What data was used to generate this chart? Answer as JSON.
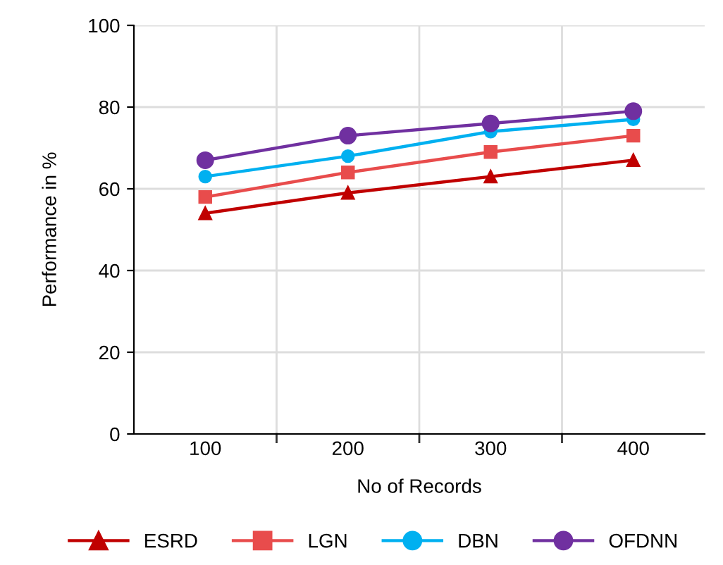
{
  "chart_data": {
    "type": "line",
    "xlabel": "No of Records",
    "ylabel": "Performance in %",
    "categories": [
      "100",
      "200",
      "300",
      "400"
    ],
    "series": [
      {
        "name": "ESRD",
        "color": "#c00000",
        "marker": "triangle",
        "values": [
          54,
          59,
          63,
          67
        ]
      },
      {
        "name": "LGN",
        "color": "#e84c4c",
        "marker": "square",
        "values": [
          58,
          64,
          69,
          73
        ]
      },
      {
        "name": "DBN",
        "color": "#00b0f0",
        "marker": "circle",
        "values": [
          63,
          68,
          74,
          77
        ]
      },
      {
        "name": "OFDNN",
        "color": "#7030a0",
        "marker": "circle",
        "values": [
          67,
          73,
          76,
          79
        ]
      }
    ],
    "ylim": [
      0,
      100
    ],
    "yticks": [
      0,
      20,
      40,
      60,
      80,
      100
    ],
    "grid": true,
    "legend": "bottom",
    "line_style": "solid"
  }
}
